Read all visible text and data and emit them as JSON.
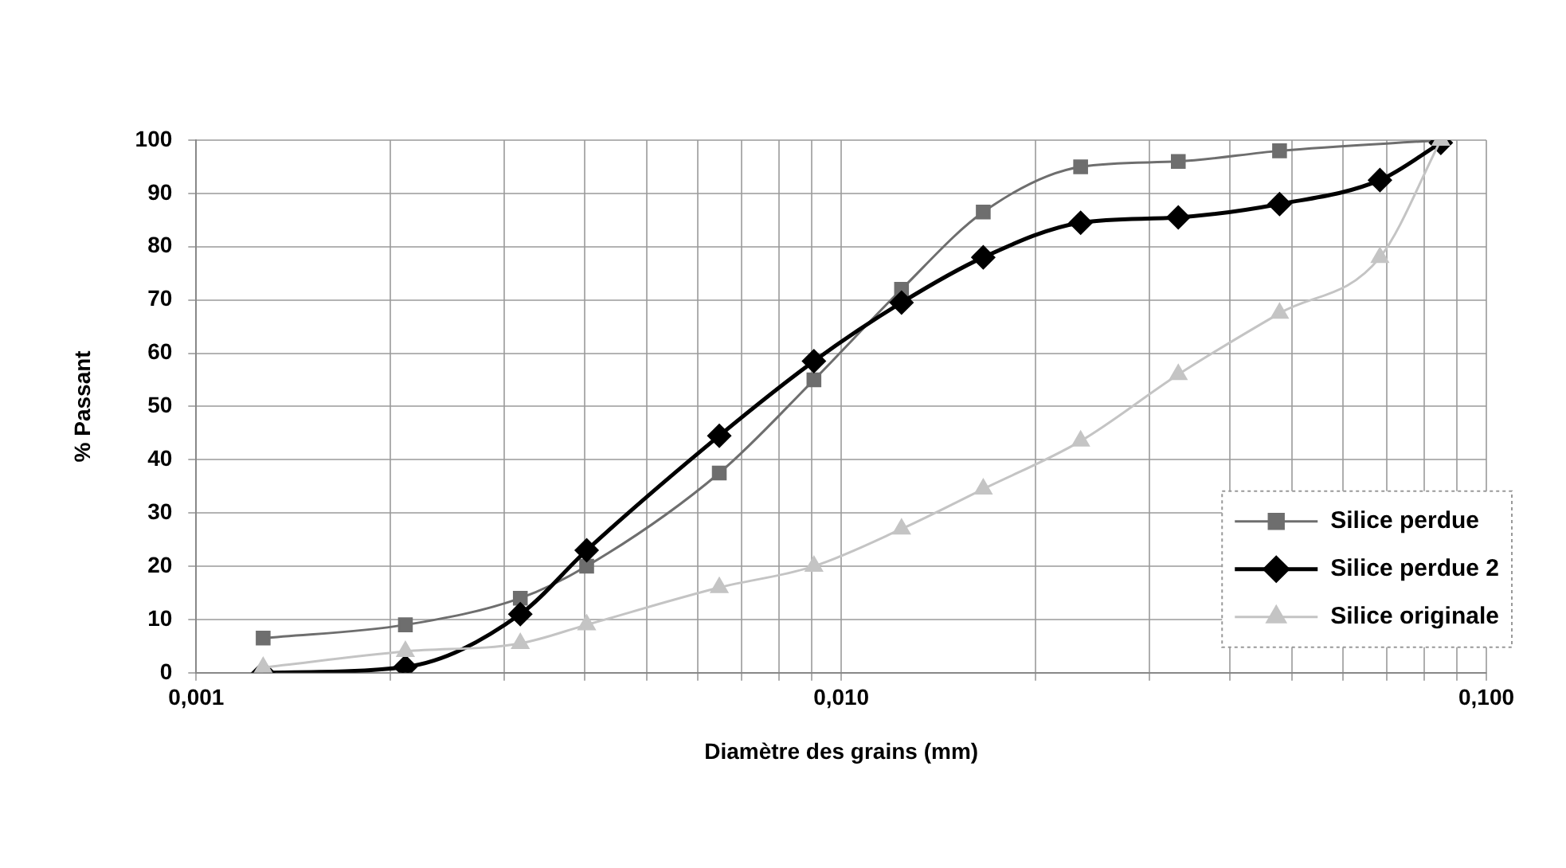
{
  "chart_data": {
    "type": "line",
    "xlabel": "Diamètre des grains (mm)",
    "ylabel": "% Passant",
    "log": "x",
    "grid": true,
    "legend": "bottom right",
    "xlim": [
      0.001,
      0.1
    ],
    "xticks": [
      {
        "value": 0.001,
        "label": "0,001"
      },
      {
        "value": 0.002,
        "label": null
      },
      {
        "value": 0.003,
        "label": null
      },
      {
        "value": 0.004,
        "label": null
      },
      {
        "value": 0.005,
        "label": null
      },
      {
        "value": 0.006,
        "label": null
      },
      {
        "value": 0.007,
        "label": null
      },
      {
        "value": 0.008,
        "label": null
      },
      {
        "value": 0.009,
        "label": null
      },
      {
        "value": 0.01,
        "label": "0,010"
      },
      {
        "value": 0.02,
        "label": null
      },
      {
        "value": 0.03,
        "label": null
      },
      {
        "value": 0.04,
        "label": null
      },
      {
        "value": 0.05,
        "label": null
      },
      {
        "value": 0.06,
        "label": null
      },
      {
        "value": 0.07,
        "label": null
      },
      {
        "value": 0.08,
        "label": null
      },
      {
        "value": 0.09,
        "label": null
      },
      {
        "value": 0.1,
        "label": "0,100"
      }
    ],
    "ylim": [
      0,
      100
    ],
    "yticks": [
      0,
      10,
      20,
      30,
      40,
      50,
      60,
      70,
      80,
      90,
      100
    ],
    "series": [
      {
        "name": "Silice perdue",
        "color": "#6e6e6e",
        "marker": "square",
        "x": [
          0.00127,
          0.00211,
          0.00318,
          0.00403,
          0.00647,
          0.00907,
          0.0124,
          0.0166,
          0.0235,
          0.0333,
          0.0478,
          0.085
        ],
        "values": [
          6.5,
          9,
          14,
          20,
          37.5,
          55,
          72,
          86.5,
          95,
          96,
          98,
          100
        ]
      },
      {
        "name": "Silice perdue 2",
        "color": "#000000",
        "marker": "diamond",
        "x": [
          0.00127,
          0.00211,
          0.00318,
          0.00403,
          0.00647,
          0.00907,
          0.0124,
          0.0166,
          0.0235,
          0.0333,
          0.0478,
          0.0684,
          0.085
        ],
        "values": [
          0,
          1.1,
          11,
          23,
          44.5,
          58.5,
          69.5,
          78,
          84.5,
          85.5,
          88,
          92.5,
          99.5
        ]
      },
      {
        "name": "Silice originale",
        "color": "#c4c4c4",
        "marker": "triangle",
        "x": [
          0.00127,
          0.00211,
          0.00318,
          0.00403,
          0.00647,
          0.00907,
          0.0124,
          0.0166,
          0.0235,
          0.0333,
          0.0478,
          0.0684,
          0.085
        ],
        "values": [
          1,
          4,
          5.5,
          9,
          16,
          20,
          27,
          34.5,
          43.5,
          56,
          67.5,
          78,
          100
        ]
      }
    ]
  }
}
